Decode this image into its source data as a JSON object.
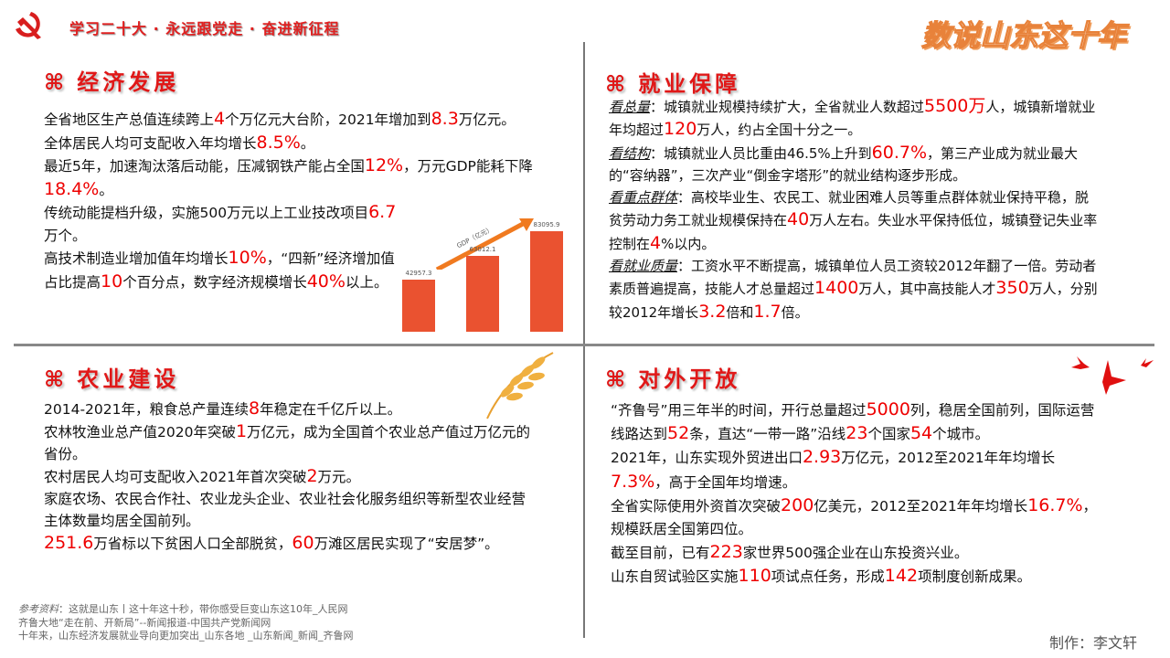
{
  "header": {
    "banner": "学习二十大 · 永远跟党走 · 奋进新征程",
    "title": "数说山东这十年"
  },
  "colors": {
    "accent": "#e00000",
    "bar": "#ea5230",
    "title": "#e8823a"
  },
  "sections": {
    "economy": {
      "icon": "command-icon",
      "cmd": "⌘",
      "title": "经济发展",
      "paras": [
        [
          [
            "全省地区生产总值连续跨上"
          ],
          [
            "4",
            1
          ],
          [
            "个万亿元大台阶，2021年增加到"
          ],
          [
            "8.3",
            1
          ],
          [
            "万亿元。"
          ]
        ],
        [
          [
            "全体居民人均可支配收入年均增长"
          ],
          [
            "8.5%",
            1
          ],
          [
            "。"
          ]
        ],
        [
          [
            "最近5年，加速淘汰落后动能，压减钢铁产能占全国"
          ],
          [
            "12%",
            1
          ],
          [
            "，万元GDP能耗下降"
          ],
          [
            "18.4%",
            1
          ],
          [
            "。"
          ]
        ],
        [
          [
            "传统动能提档升级，实施500万元以上工业技改项目"
          ],
          [
            "6.7",
            1
          ],
          [
            "万个。"
          ]
        ],
        [
          [
            "高技术制造业增加值年均增长"
          ],
          [
            "10%",
            1
          ],
          [
            "，“四新”经济增加值占比提高"
          ],
          [
            "10",
            1
          ],
          [
            "个百分点，数字经济规模增长"
          ],
          [
            "40%",
            1
          ],
          [
            "以上。"
          ]
        ]
      ]
    },
    "employment": {
      "icon": "command-icon",
      "cmd": "⌘",
      "title": "就业保障",
      "paras": [
        [
          [
            "看总量",
            2
          ],
          [
            "：城镇就业规模持续扩大，全省就业人数超过"
          ],
          [
            "5500万",
            1
          ],
          [
            "人，城镇新增就业年均超过"
          ],
          [
            "120",
            1
          ],
          [
            "万人，约占全国十分之一。"
          ]
        ],
        [
          [
            "看结构",
            2
          ],
          [
            "：城镇就业人员比重由46.5%上升到"
          ],
          [
            "60.7%",
            1
          ],
          [
            "，第三产业成为就业最大的“容纳器”，三次产业“倒金字塔形”的就业结构逐步形成。"
          ]
        ],
        [
          [
            "看重点群体",
            2
          ],
          [
            "：高校毕业生、农民工、就业困难人员等重点群体就业保持平稳，脱贫劳动力务工就业规模保持在"
          ],
          [
            "40",
            1
          ],
          [
            "万人左右。失业水平保持低位，城镇登记失业率控制在"
          ],
          [
            "4",
            1
          ],
          [
            "%以内。"
          ]
        ],
        [
          [
            "看就业质量",
            2
          ],
          [
            "：工资水平不断提高，城镇单位人员工资较2012年翻了一倍。劳动者素质普遍提高，技能人才总量超过"
          ],
          [
            "1400",
            1
          ],
          [
            "万人，其中高技能人才"
          ],
          [
            "350",
            1
          ],
          [
            "万人，分别较2012年增长"
          ],
          [
            "3.2",
            1
          ],
          [
            "倍和"
          ],
          [
            "1.7",
            1
          ],
          [
            "倍。"
          ]
        ]
      ]
    },
    "agriculture": {
      "icon": "command-icon",
      "cmd": "⌘",
      "title": "农业建设",
      "paras": [
        [
          [
            "2014-2021年，粮食总产量连续"
          ],
          [
            "8",
            1
          ],
          [
            "年稳定在千亿斤以上。"
          ]
        ],
        [
          [
            "农林牧渔业总产值2020年突破"
          ],
          [
            "1",
            1
          ],
          [
            "万亿元，成为全国首个农业总产值过万亿元的省份。"
          ]
        ],
        [
          [
            "农村居民人均可支配收入2021年首次突破"
          ],
          [
            "2",
            1
          ],
          [
            "万元。"
          ]
        ],
        [
          [
            "家庭农场、农民合作社、农业龙头企业、农业社会化服务组织等新型农业经营主体数量均居全国前列。"
          ]
        ],
        [
          [
            "251.6",
            1
          ],
          [
            "万省标以下贫困人口全部脱贫，"
          ],
          [
            "60",
            1
          ],
          [
            "万滩区居民实现了“安居梦”。"
          ]
        ]
      ]
    },
    "opening": {
      "icon": "command-icon",
      "cmd": "⌘",
      "title": "对外开放",
      "paras": [
        [
          [
            "“齐鲁号”用三年半的时间，开行总量超过"
          ],
          [
            "5000",
            1
          ],
          [
            "列，稳居全国前列，国际运营线路达到"
          ],
          [
            "52",
            1
          ],
          [
            "条，直达“一带一路”沿线"
          ],
          [
            "23",
            1
          ],
          [
            "个国家"
          ],
          [
            "54",
            1
          ],
          [
            "个城市。"
          ]
        ],
        [
          [
            "2021年，山东实现外贸进出口"
          ],
          [
            "2.93",
            1
          ],
          [
            "万亿元，2012至2021年年均增长"
          ],
          [
            "7.3%",
            1
          ],
          [
            "，高于全国年均增速。"
          ]
        ],
        [
          [
            "全省实际使用外资首次突破"
          ],
          [
            "200",
            1
          ],
          [
            "亿美元，2012至2021年年均增长"
          ],
          [
            "16.7%",
            1
          ],
          [
            "，规模跃居全国第四位。"
          ]
        ],
        [
          [
            "截至目前，已有"
          ],
          [
            "223",
            1
          ],
          [
            "家世界500强企业在山东投资兴业。"
          ]
        ],
        [
          [
            "山东自贸试验区实施"
          ],
          [
            "110",
            1
          ],
          [
            "项试点任务，形成"
          ],
          [
            "142",
            1
          ],
          [
            "项制度创新成果。"
          ]
        ]
      ]
    }
  },
  "chart_data": {
    "type": "bar",
    "label": "GDP（亿元）",
    "values": [
      42957.3,
      63012.1,
      83095.9
    ],
    "value_labels": [
      "42957.3",
      "63012.1",
      "83095.9"
    ]
  },
  "footer": {
    "refs_label": "参考资料",
    "refs": [
      "：这就是山东丨这十年这十秒，带你感受巨变山东这10年_人民网",
      "齐鲁大地“走在前、开新局”--新闻报道-中国共产党新闻网",
      "十年来，山东经济发展就业导向更加突出_山东各地 _山东新闻_新闻_齐鲁网"
    ],
    "author": "制作：李文轩"
  }
}
